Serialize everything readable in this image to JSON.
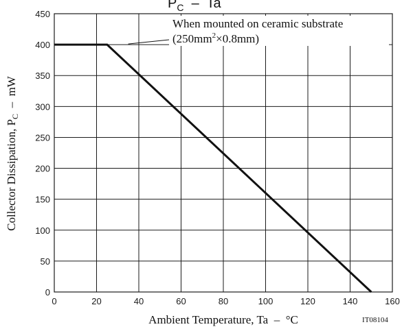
{
  "chart_data": {
    "type": "line",
    "title": {
      "main": "P",
      "sub": "C",
      "tail": "  –  Ta"
    },
    "xlabel": "Ambient Temperature, Ta  –  °C",
    "ylabel": {
      "main": "Collector Dissipation, P",
      "sub": "C",
      "tail": "  –  mW"
    },
    "xlim": [
      0,
      160
    ],
    "ylim": [
      0,
      450
    ],
    "xticks": [
      "0",
      "20",
      "40",
      "60",
      "80",
      "100",
      "120",
      "140",
      "160"
    ],
    "yticks": [
      "0",
      "50",
      "100",
      "150",
      "200",
      "250",
      "300",
      "350",
      "400",
      "450"
    ],
    "grid": true,
    "series": [
      {
        "x": [
          0,
          25,
          150
        ],
        "y": [
          400,
          400,
          0
        ]
      }
    ],
    "annotation": {
      "line1": "When mounted on ceramic substrate",
      "line2_pre": "(250mm",
      "line2_sup": "2",
      "line2_post": "×0.8mm)",
      "leader_x": 35,
      "leader_y": 400
    },
    "figure_code": "IT08104"
  }
}
